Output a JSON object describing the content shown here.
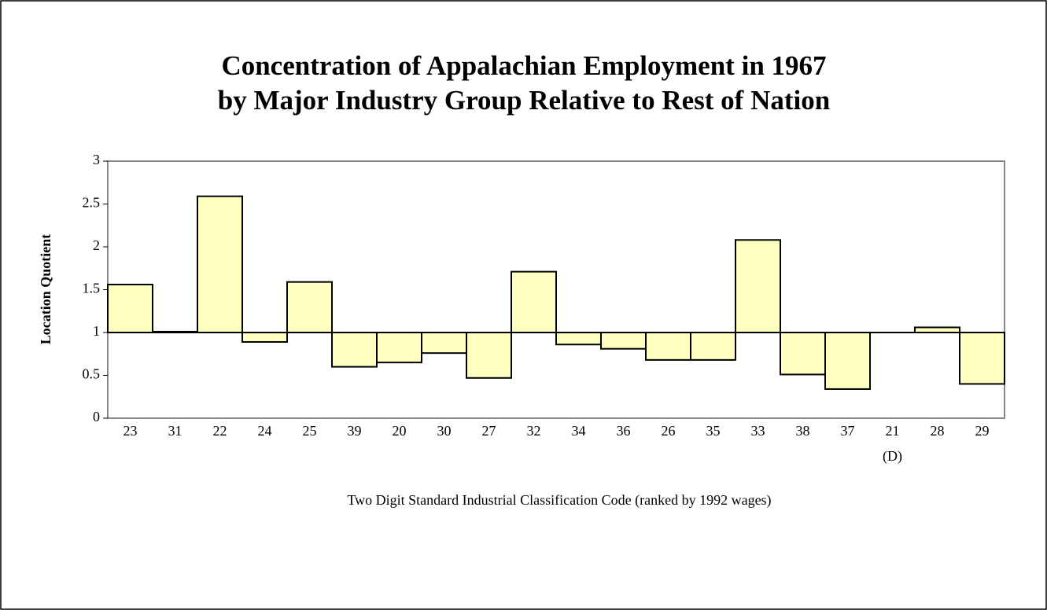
{
  "chart_data": {
    "type": "bar",
    "title": [
      "Concentration of Appalachian Employment in 1967",
      "by Major Industry Group Relative to Rest of Nation"
    ],
    "xlabel": "Two Digit Standard Industrial Classification Code (ranked by 1992 wages)",
    "ylabel": "Location Quotient",
    "categories": [
      "23",
      "31",
      "22",
      "24",
      "25",
      "39",
      "20",
      "30",
      "27",
      "32",
      "34",
      "36",
      "26",
      "35",
      "33",
      "38",
      "37",
      "21",
      "28",
      "29"
    ],
    "category_notes": [
      null,
      null,
      null,
      null,
      null,
      null,
      null,
      null,
      null,
      null,
      null,
      null,
      null,
      null,
      null,
      null,
      null,
      "(D)",
      null,
      null
    ],
    "values": [
      1.56,
      1.01,
      2.59,
      0.89,
      1.59,
      0.6,
      0.65,
      0.76,
      0.47,
      1.71,
      0.86,
      0.81,
      0.68,
      0.68,
      2.08,
      0.51,
      0.34,
      null,
      1.06,
      0.4
    ],
    "baseline": 1,
    "color": "#ffffc0",
    "ylim": [
      0,
      3
    ],
    "yticks": [
      0,
      0.5,
      1,
      1.5,
      2,
      2.5,
      3
    ]
  }
}
